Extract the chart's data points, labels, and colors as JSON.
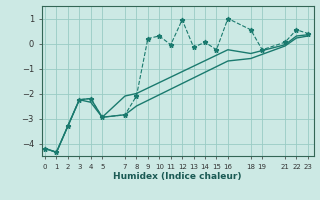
{
  "title": "",
  "xlabel": "Humidex (Indice chaleur)",
  "bg_color": "#cce9e4",
  "grid_color": "#99ccc4",
  "line_color": "#1a7a6e",
  "ylim": [
    -4.5,
    1.5
  ],
  "yticks": [
    -4,
    -3,
    -2,
    -1,
    0,
    1
  ],
  "xlim": [
    -0.3,
    23.5
  ],
  "main_x": [
    0,
    1,
    2,
    3,
    4,
    5,
    7,
    8,
    9,
    10,
    11,
    12,
    13,
    14,
    15,
    16,
    18,
    19,
    21,
    22,
    23
  ],
  "main_y": [
    -4.2,
    -4.35,
    -3.3,
    -2.25,
    -2.2,
    -2.95,
    -2.85,
    -2.1,
    0.2,
    0.3,
    -0.05,
    0.95,
    -0.15,
    0.05,
    -0.25,
    1.0,
    0.55,
    -0.25,
    0.05,
    0.55,
    0.4
  ],
  "trend1_x": [
    0,
    1,
    3,
    4,
    5,
    7,
    8,
    16,
    18,
    21,
    22,
    23
  ],
  "trend1_y": [
    -4.2,
    -4.35,
    -2.25,
    -2.2,
    -2.95,
    -2.1,
    -2.0,
    -0.25,
    -0.4,
    -0.05,
    0.3,
    0.35
  ],
  "trend2_x": [
    0,
    1,
    3,
    4,
    5,
    7,
    8,
    16,
    18,
    21,
    22,
    23
  ],
  "trend2_y": [
    -4.2,
    -4.35,
    -2.25,
    -2.35,
    -2.95,
    -2.85,
    -2.5,
    -0.7,
    -0.6,
    -0.1,
    0.22,
    0.3
  ],
  "xtick_positions": [
    0,
    1,
    2,
    3,
    4,
    5,
    7,
    8,
    9,
    10,
    11,
    12,
    13,
    14,
    15,
    16,
    18,
    19,
    21,
    22,
    23
  ],
  "xtick_labels": [
    "0",
    "1",
    "2",
    "3",
    "4",
    "5",
    "7",
    "8",
    "9",
    "10",
    "11",
    "12",
    "13",
    "14",
    "15",
    "16",
    "18",
    "19",
    "21",
    "22",
    "23"
  ]
}
